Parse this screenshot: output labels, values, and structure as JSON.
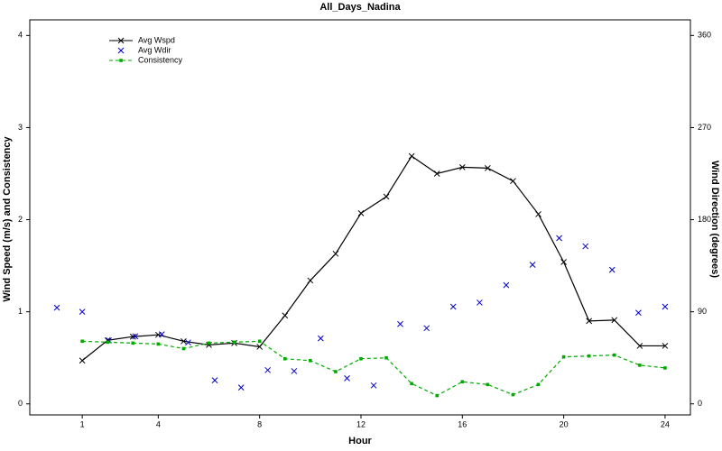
{
  "chart_data": {
    "type": "line",
    "title": "All_Days_Nadina",
    "xlabel": "Hour",
    "ylabel": "Wind Speed (m/s) and Consistency",
    "y2label": "Wind Direction (degrees)",
    "xlim": [
      -1.07,
      25
    ],
    "xticks": [
      1,
      4,
      8,
      12,
      16,
      20,
      24
    ],
    "ylim": [
      -0.12,
      4.17
    ],
    "yticks": [
      0,
      1,
      2,
      3,
      4
    ],
    "y2lim": [
      -10.8,
      375.3
    ],
    "y2ticks": [
      0,
      90,
      180,
      270,
      360
    ],
    "legend": "upper left",
    "series": [
      {
        "name": "Avg Wspd",
        "color": "#000000",
        "marker": "x",
        "linestyle": "solid",
        "axis": "y",
        "x": [
          1,
          2,
          3,
          4,
          5,
          6,
          7,
          8,
          9,
          10,
          11,
          12,
          13,
          14,
          15,
          16,
          17,
          18,
          19,
          20,
          21,
          22,
          23,
          24
        ],
        "values": [
          0.47,
          0.69,
          0.73,
          0.75,
          0.68,
          0.64,
          0.66,
          0.62,
          0.96,
          1.34,
          1.63,
          2.07,
          2.25,
          2.69,
          2.5,
          2.57,
          2.56,
          2.42,
          2.06,
          1.54,
          0.9,
          0.91,
          0.63,
          0.63
        ]
      },
      {
        "name": "Avg Wdir",
        "color": "#0000cc",
        "marker": "x",
        "linestyle": "none",
        "axis": "y2",
        "x": [
          0,
          1,
          2.05,
          3.09,
          4.14,
          5.18,
          6.23,
          7.27,
          8.32,
          9.36,
          10.41,
          11.45,
          12.5,
          13.55,
          14.59,
          15.64,
          16.68,
          17.73,
          18.77,
          19.82,
          20.86,
          21.91,
          22.95,
          24
        ],
        "values": [
          94,
          90,
          62,
          66,
          68,
          60,
          23,
          16,
          33,
          32,
          64,
          25,
          18,
          78,
          74,
          95,
          99,
          116,
          136,
          162,
          154,
          131,
          89,
          95
        ]
      },
      {
        "name": "Consistency",
        "color": "#00aa00",
        "marker": "square",
        "linestyle": "dashed",
        "axis": "y",
        "x": [
          1,
          2,
          3,
          4,
          5,
          6,
          7,
          8,
          9,
          10,
          11,
          12,
          13,
          14,
          15,
          16,
          17,
          18,
          19,
          20,
          21,
          22,
          23,
          24
        ],
        "values": [
          0.68,
          0.67,
          0.66,
          0.65,
          0.6,
          0.66,
          0.67,
          0.68,
          0.49,
          0.47,
          0.35,
          0.49,
          0.5,
          0.22,
          0.09,
          0.24,
          0.21,
          0.1,
          0.21,
          0.51,
          0.52,
          0.53,
          0.42,
          0.39
        ]
      }
    ]
  }
}
